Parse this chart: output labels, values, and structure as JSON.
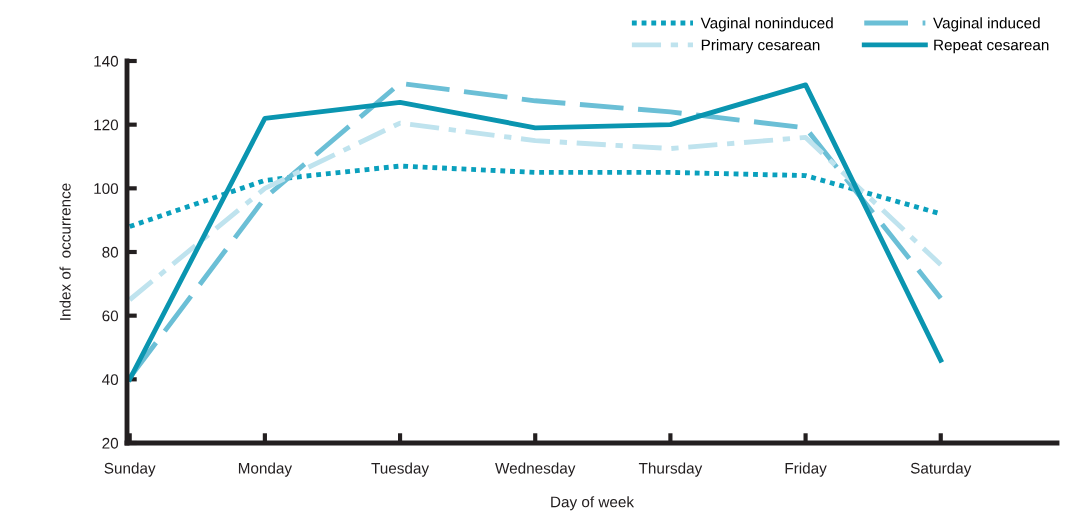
{
  "chart_data": {
    "type": "line",
    "xlabel": "Day of week",
    "ylabel": "Index of  occurrence",
    "categories": [
      "Sunday",
      "Monday",
      "Tuesday",
      "Wednesday",
      "Thursday",
      "Friday",
      "Saturday"
    ],
    "series": [
      {
        "name": "Vaginal noninduced",
        "color": "#0aa0bd",
        "line_style": "dotted",
        "values": [
          88,
          102.5,
          107,
          105,
          105,
          104,
          92
        ]
      },
      {
        "name": "Vaginal induced",
        "color": "#6bbfd6",
        "line_style": "dashed",
        "values": [
          40.5,
          97,
          133,
          127.5,
          124,
          119,
          65.5
        ]
      },
      {
        "name": "Primary cesarean",
        "color": "#bfe3ee",
        "line_style": "dashdot",
        "values": [
          65,
          100,
          120.5,
          115,
          112.5,
          116,
          76
        ]
      },
      {
        "name": "Repeat cesarean",
        "color": "#0a95b0",
        "line_style": "solid",
        "values": [
          40,
          122,
          127,
          119,
          120,
          132.5,
          46
        ]
      }
    ],
    "ylim": [
      20,
      140
    ],
    "yticks": [
      20,
      40,
      60,
      80,
      100,
      120,
      140
    ],
    "grid": false,
    "legend": "top right",
    "marker": "none"
  }
}
